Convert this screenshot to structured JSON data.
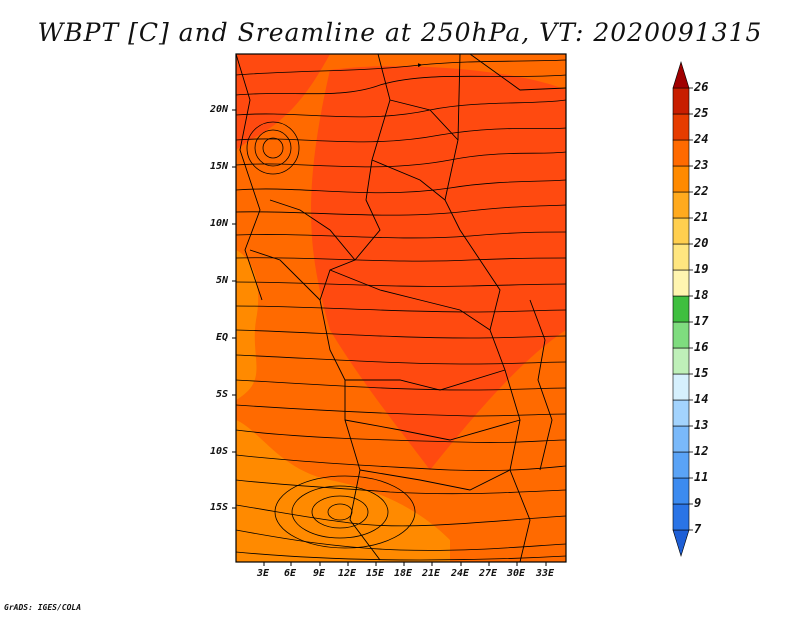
{
  "title": "WBPT [C] and Sreamline at 250hPa, VT: 2020091315",
  "credit": "GrADS: IGES/COLA",
  "lat_labels": [
    "20N",
    "15N",
    "10N",
    "5N",
    "EQ",
    "5S",
    "10S",
    "15S"
  ],
  "lon_labels": [
    "3E",
    "6E",
    "9E",
    "12E",
    "15E",
    "18E",
    "21E",
    "24E",
    "27E",
    "30E",
    "33E"
  ],
  "colorbar": {
    "levels": [
      "7",
      "9",
      "11",
      "12",
      "13",
      "14",
      "15",
      "16",
      "17",
      "18",
      "19",
      "20",
      "21",
      "22",
      "23",
      "24",
      "25",
      "26"
    ],
    "colors": [
      "#1e5fd6",
      "#2a74e6",
      "#3c8bf0",
      "#5aa3f6",
      "#7ab9fa",
      "#a3d3fd",
      "#d6f0fd",
      "#bff0b9",
      "#7fdc7f",
      "#3fbf3f",
      "#fff5b0",
      "#ffe680",
      "#ffcf4f",
      "#ffaa1e",
      "#ff8a00",
      "#ff6a00",
      "#e63c00",
      "#c81e00",
      "#a00000"
    ]
  },
  "field_colors": {
    "base": "#ff6a00",
    "warm": "#ff4a10",
    "cool": "#ff8a00"
  }
}
